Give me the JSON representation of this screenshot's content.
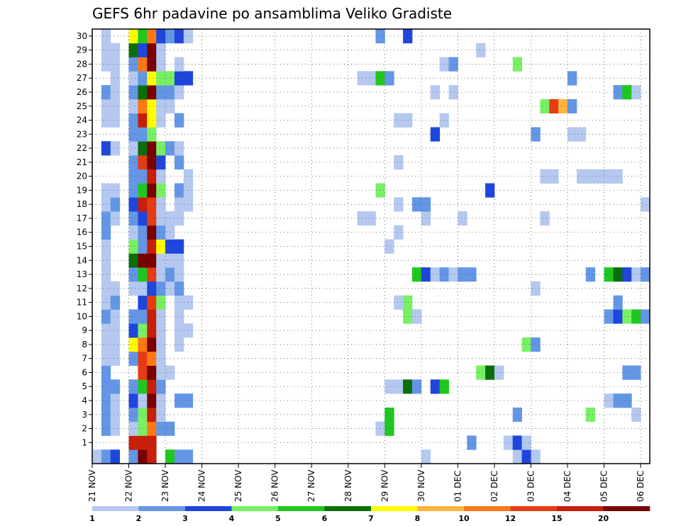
{
  "chart_data": {
    "type": "heatmap",
    "title": "GEFS 6hr padavine po ansamblima Veliko Gradiste",
    "xlabel": "",
    "ylabel": "",
    "x_ticks": [
      "21 NOV",
      "22 NOV",
      "23 NOV",
      "24 NOV",
      "25 NOV",
      "26 NOV",
      "27 NOV",
      "28 NOV",
      "29 NOV",
      "30 NOV",
      "01 DEC",
      "02 DEC",
      "03 DEC",
      "04 DEC",
      "05 DEC",
      "06 DEC"
    ],
    "y_ticks": [
      "1",
      "2",
      "3",
      "4",
      "5",
      "6",
      "7",
      "8",
      "9",
      "10",
      "11",
      "12",
      "13",
      "14",
      "15",
      "16",
      "17",
      "18",
      "19",
      "20",
      "21",
      "22",
      "23",
      "24",
      "25",
      "26",
      "27",
      "28",
      "29",
      "30"
    ],
    "ylim": [
      0,
      30
    ],
    "grid": true,
    "levels": [
      1,
      2,
      3,
      4,
      5,
      6,
      7,
      8,
      10,
      12,
      15,
      20
    ],
    "colorbar_labels": [
      "1",
      "2",
      "3",
      "4",
      "5",
      "6",
      "7",
      "8",
      "10",
      "12",
      "15",
      "20"
    ],
    "colors": [
      "#b4c8f0",
      "#6496e6",
      "#1e46dc",
      "#78f064",
      "#1ec81e",
      "#0a6e0a",
      "#ffff00",
      "#ffb43c",
      "#ff7814",
      "#e63c14",
      "#c81e0a",
      "#780000"
    ],
    "cells": [
      [
        0,
        0,
        0
      ],
      [
        0,
        1,
        1
      ],
      [
        0,
        2,
        2
      ],
      [
        0,
        4,
        1
      ],
      [
        0,
        5,
        11
      ],
      [
        0,
        6,
        10
      ],
      [
        0,
        8,
        4
      ],
      [
        0,
        9,
        1
      ],
      [
        0,
        10,
        1
      ],
      [
        0,
        36,
        0
      ],
      [
        0,
        46,
        0
      ],
      [
        0,
        47,
        2
      ],
      [
        0,
        48,
        0
      ],
      [
        1,
        4,
        10
      ],
      [
        1,
        5,
        10
      ],
      [
        1,
        6,
        10
      ],
      [
        1,
        41,
        1
      ],
      [
        1,
        45,
        0
      ],
      [
        1,
        46,
        2
      ],
      [
        1,
        47,
        0
      ],
      [
        2,
        1,
        1
      ],
      [
        2,
        2,
        0
      ],
      [
        2,
        4,
        0
      ],
      [
        2,
        5,
        3
      ],
      [
        2,
        6,
        8
      ],
      [
        2,
        7,
        1
      ],
      [
        2,
        8,
        1
      ],
      [
        2,
        31,
        0
      ],
      [
        2,
        32,
        4
      ],
      [
        3,
        1,
        1
      ],
      [
        3,
        2,
        0
      ],
      [
        3,
        4,
        1
      ],
      [
        3,
        5,
        3
      ],
      [
        3,
        6,
        10
      ],
      [
        3,
        7,
        0
      ],
      [
        3,
        32,
        4
      ],
      [
        3,
        46,
        1
      ],
      [
        3,
        54,
        3
      ],
      [
        3,
        59,
        0
      ],
      [
        4,
        1,
        1
      ],
      [
        4,
        2,
        0
      ],
      [
        4,
        4,
        2
      ],
      [
        4,
        5,
        0
      ],
      [
        4,
        6,
        11
      ],
      [
        4,
        7,
        0
      ],
      [
        4,
        9,
        1
      ],
      [
        4,
        10,
        1
      ],
      [
        4,
        56,
        0
      ],
      [
        4,
        57,
        1
      ],
      [
        4,
        58,
        1
      ],
      [
        5,
        1,
        1
      ],
      [
        5,
        2,
        1
      ],
      [
        5,
        4,
        1
      ],
      [
        5,
        5,
        4
      ],
      [
        5,
        6,
        10
      ],
      [
        5,
        7,
        1
      ],
      [
        5,
        32,
        0
      ],
      [
        5,
        33,
        0
      ],
      [
        5,
        34,
        5
      ],
      [
        5,
        35,
        1
      ],
      [
        5,
        37,
        2
      ],
      [
        5,
        38,
        4
      ],
      [
        6,
        1,
        1
      ],
      [
        6,
        5,
        9
      ],
      [
        6,
        6,
        11
      ],
      [
        6,
        7,
        0
      ],
      [
        6,
        8,
        0
      ],
      [
        6,
        42,
        3
      ],
      [
        6,
        43,
        5
      ],
      [
        6,
        44,
        0
      ],
      [
        6,
        58,
        1
      ],
      [
        6,
        59,
        1
      ],
      [
        7,
        1,
        0
      ],
      [
        7,
        2,
        0
      ],
      [
        7,
        4,
        1
      ],
      [
        7,
        5,
        9
      ],
      [
        7,
        6,
        8
      ],
      [
        7,
        7,
        0
      ],
      [
        8,
        1,
        0
      ],
      [
        8,
        2,
        0
      ],
      [
        8,
        4,
        6
      ],
      [
        8,
        5,
        8
      ],
      [
        8,
        6,
        11
      ],
      [
        8,
        7,
        0
      ],
      [
        8,
        9,
        0
      ],
      [
        8,
        47,
        3
      ],
      [
        8,
        48,
        1
      ],
      [
        9,
        1,
        0
      ],
      [
        9,
        2,
        0
      ],
      [
        9,
        4,
        2
      ],
      [
        9,
        5,
        3
      ],
      [
        9,
        6,
        10
      ],
      [
        9,
        7,
        0
      ],
      [
        9,
        9,
        0
      ],
      [
        9,
        10,
        0
      ],
      [
        10,
        1,
        1
      ],
      [
        10,
        2,
        0
      ],
      [
        10,
        4,
        1
      ],
      [
        10,
        5,
        1
      ],
      [
        10,
        6,
        10
      ],
      [
        10,
        7,
        0
      ],
      [
        10,
        9,
        0
      ],
      [
        10,
        34,
        3
      ],
      [
        10,
        35,
        0
      ],
      [
        10,
        56,
        1
      ],
      [
        10,
        57,
        2
      ],
      [
        10,
        58,
        3
      ],
      [
        10,
        59,
        4
      ],
      [
        10,
        60,
        1
      ],
      [
        11,
        1,
        0
      ],
      [
        11,
        2,
        1
      ],
      [
        11,
        5,
        2
      ],
      [
        11,
        6,
        9
      ],
      [
        11,
        7,
        3
      ],
      [
        11,
        9,
        0
      ],
      [
        11,
        10,
        0
      ],
      [
        11,
        33,
        0
      ],
      [
        11,
        34,
        3
      ],
      [
        11,
        57,
        1
      ],
      [
        12,
        1,
        0
      ],
      [
        12,
        2,
        0
      ],
      [
        12,
        4,
        0
      ],
      [
        12,
        5,
        0
      ],
      [
        12,
        6,
        2
      ],
      [
        12,
        7,
        1
      ],
      [
        12,
        8,
        0
      ],
      [
        12,
        9,
        1
      ],
      [
        12,
        48,
        0
      ],
      [
        13,
        1,
        0
      ],
      [
        13,
        4,
        1
      ],
      [
        13,
        5,
        4
      ],
      [
        13,
        6,
        9
      ],
      [
        13,
        7,
        0
      ],
      [
        13,
        8,
        1
      ],
      [
        13,
        9,
        0
      ],
      [
        13,
        35,
        4
      ],
      [
        13,
        36,
        2
      ],
      [
        13,
        37,
        0
      ],
      [
        13,
        38,
        1
      ],
      [
        13,
        39,
        0
      ],
      [
        13,
        40,
        1
      ],
      [
        13,
        41,
        1
      ],
      [
        13,
        54,
        1
      ],
      [
        13,
        56,
        4
      ],
      [
        13,
        57,
        5
      ],
      [
        13,
        58,
        2
      ],
      [
        13,
        59,
        0
      ],
      [
        13,
        60,
        1
      ],
      [
        14,
        1,
        0
      ],
      [
        14,
        4,
        5
      ],
      [
        14,
        5,
        11
      ],
      [
        14,
        6,
        11
      ],
      [
        14,
        7,
        0
      ],
      [
        14,
        8,
        0
      ],
      [
        14,
        9,
        0
      ],
      [
        15,
        1,
        0
      ],
      [
        15,
        4,
        3
      ],
      [
        15,
        5,
        1
      ],
      [
        15,
        6,
        10
      ],
      [
        15,
        7,
        6
      ],
      [
        15,
        8,
        2
      ],
      [
        15,
        9,
        2
      ],
      [
        15,
        32,
        0
      ],
      [
        16,
        1,
        1
      ],
      [
        16,
        4,
        0
      ],
      [
        16,
        5,
        1
      ],
      [
        16,
        6,
        11
      ],
      [
        16,
        7,
        1
      ],
      [
        16,
        8,
        0
      ],
      [
        16,
        33,
        0
      ],
      [
        17,
        1,
        1
      ],
      [
        17,
        2,
        0
      ],
      [
        17,
        4,
        1
      ],
      [
        17,
        5,
        2
      ],
      [
        17,
        6,
        9
      ],
      [
        17,
        7,
        0
      ],
      [
        17,
        8,
        0
      ],
      [
        17,
        9,
        0
      ],
      [
        17,
        29,
        0
      ],
      [
        17,
        30,
        0
      ],
      [
        17,
        36,
        0
      ],
      [
        17,
        40,
        0
      ],
      [
        17,
        49,
        0
      ],
      [
        18,
        1,
        0
      ],
      [
        18,
        2,
        1
      ],
      [
        18,
        4,
        2
      ],
      [
        18,
        5,
        10
      ],
      [
        18,
        6,
        9
      ],
      [
        18,
        7,
        0
      ],
      [
        18,
        9,
        0
      ],
      [
        18,
        10,
        0
      ],
      [
        18,
        33,
        0
      ],
      [
        18,
        35,
        1
      ],
      [
        18,
        36,
        1
      ],
      [
        18,
        60,
        0
      ],
      [
        19,
        1,
        0
      ],
      [
        19,
        2,
        0
      ],
      [
        19,
        4,
        1
      ],
      [
        19,
        5,
        4
      ],
      [
        19,
        6,
        11
      ],
      [
        19,
        7,
        3
      ],
      [
        19,
        9,
        1
      ],
      [
        19,
        10,
        0
      ],
      [
        19,
        31,
        3
      ],
      [
        19,
        43,
        2
      ],
      [
        20,
        4,
        1
      ],
      [
        20,
        5,
        1
      ],
      [
        20,
        6,
        10
      ],
      [
        20,
        7,
        0
      ],
      [
        20,
        10,
        0
      ],
      [
        20,
        49,
        0
      ],
      [
        20,
        50,
        0
      ],
      [
        20,
        53,
        0
      ],
      [
        20,
        54,
        0
      ],
      [
        20,
        55,
        0
      ],
      [
        20,
        56,
        0
      ],
      [
        20,
        57,
        0
      ],
      [
        21,
        4,
        1
      ],
      [
        21,
        5,
        9
      ],
      [
        21,
        6,
        11
      ],
      [
        21,
        7,
        2
      ],
      [
        21,
        9,
        1
      ],
      [
        21,
        33,
        0
      ],
      [
        22,
        1,
        2
      ],
      [
        22,
        2,
        0
      ],
      [
        22,
        4,
        0
      ],
      [
        22,
        5,
        5
      ],
      [
        22,
        6,
        11
      ],
      [
        22,
        7,
        3
      ],
      [
        22,
        8,
        1
      ],
      [
        22,
        9,
        0
      ],
      [
        23,
        4,
        1
      ],
      [
        23,
        5,
        1
      ],
      [
        23,
        6,
        3
      ],
      [
        23,
        37,
        2
      ],
      [
        23,
        48,
        1
      ],
      [
        23,
        52,
        0
      ],
      [
        23,
        53,
        0
      ],
      [
        24,
        1,
        0
      ],
      [
        24,
        2,
        0
      ],
      [
        24,
        4,
        1
      ],
      [
        24,
        5,
        10
      ],
      [
        24,
        6,
        6
      ],
      [
        24,
        7,
        0
      ],
      [
        24,
        9,
        1
      ],
      [
        24,
        33,
        0
      ],
      [
        24,
        34,
        0
      ],
      [
        24,
        38,
        0
      ],
      [
        25,
        1,
        0
      ],
      [
        25,
        2,
        0
      ],
      [
        25,
        4,
        0
      ],
      [
        25,
        5,
        8
      ],
      [
        25,
        6,
        6
      ],
      [
        25,
        7,
        0
      ],
      [
        25,
        8,
        0
      ],
      [
        25,
        49,
        3
      ],
      [
        25,
        50,
        9
      ],
      [
        25,
        51,
        7
      ],
      [
        25,
        52,
        1
      ],
      [
        26,
        1,
        1
      ],
      [
        26,
        2,
        0
      ],
      [
        26,
        4,
        1
      ],
      [
        26,
        5,
        5
      ],
      [
        26,
        6,
        11
      ],
      [
        26,
        7,
        1
      ],
      [
        26,
        8,
        1
      ],
      [
        26,
        9,
        0
      ],
      [
        26,
        37,
        0
      ],
      [
        26,
        39,
        0
      ],
      [
        26,
        57,
        1
      ],
      [
        26,
        58,
        4
      ],
      [
        26,
        59,
        0
      ],
      [
        27,
        2,
        0
      ],
      [
        27,
        4,
        0
      ],
      [
        27,
        5,
        1
      ],
      [
        27,
        6,
        6
      ],
      [
        27,
        7,
        3
      ],
      [
        27,
        8,
        3
      ],
      [
        27,
        9,
        2
      ],
      [
        27,
        10,
        2
      ],
      [
        27,
        29,
        0
      ],
      [
        27,
        30,
        0
      ],
      [
        27,
        31,
        4
      ],
      [
        27,
        32,
        1
      ],
      [
        27,
        52,
        1
      ],
      [
        28,
        1,
        0
      ],
      [
        28,
        2,
        0
      ],
      [
        28,
        4,
        1
      ],
      [
        28,
        5,
        8
      ],
      [
        28,
        6,
        11
      ],
      [
        28,
        7,
        0
      ],
      [
        28,
        9,
        0
      ],
      [
        28,
        38,
        0
      ],
      [
        28,
        39,
        1
      ],
      [
        28,
        46,
        3
      ],
      [
        29,
        1,
        0
      ],
      [
        29,
        2,
        0
      ],
      [
        29,
        4,
        5
      ],
      [
        29,
        5,
        2
      ],
      [
        29,
        6,
        11
      ],
      [
        29,
        7,
        0
      ],
      [
        29,
        42,
        0
      ],
      [
        30,
        1,
        0
      ],
      [
        30,
        4,
        6
      ],
      [
        30,
        5,
        4
      ],
      [
        30,
        6,
        8
      ],
      [
        30,
        7,
        2
      ],
      [
        30,
        8,
        1
      ],
      [
        30,
        9,
        2
      ],
      [
        30,
        10,
        0
      ],
      [
        30,
        31,
        1
      ],
      [
        30,
        34,
        2
      ]
    ]
  }
}
